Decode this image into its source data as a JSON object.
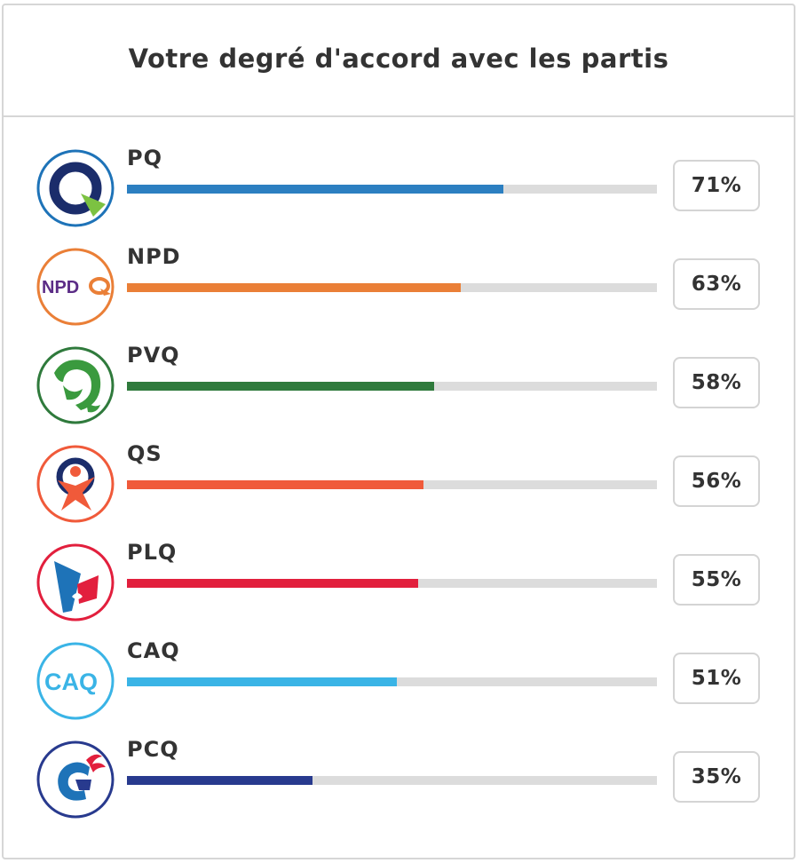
{
  "header": {
    "title": "Votre degré d'accord avec les partis"
  },
  "parties": [
    {
      "name": "PQ",
      "score": 71,
      "score_label": "71%",
      "color": "#2c7fc1",
      "icon": "pq-logo-icon"
    },
    {
      "name": "NPD",
      "score": 63,
      "score_label": "63%",
      "color": "#ea7f37",
      "icon": "npd-logo-icon"
    },
    {
      "name": "PVQ",
      "score": 58,
      "score_label": "58%",
      "color": "#2f7a3c",
      "icon": "pvq-logo-icon"
    },
    {
      "name": "QS",
      "score": 56,
      "score_label": "56%",
      "color": "#f05a3a",
      "icon": "qs-logo-icon"
    },
    {
      "name": "PLQ",
      "score": 55,
      "score_label": "55%",
      "color": "#e21f3d",
      "icon": "plq-logo-icon"
    },
    {
      "name": "CAQ",
      "score": 51,
      "score_label": "51%",
      "color": "#3ab4e6",
      "icon": "caq-logo-icon"
    },
    {
      "name": "PCQ",
      "score": 35,
      "score_label": "35%",
      "color": "#283a8e",
      "icon": "pcq-logo-icon"
    }
  ],
  "logo_texts": {
    "npd": "NPD",
    "caq": "CAQ"
  }
}
